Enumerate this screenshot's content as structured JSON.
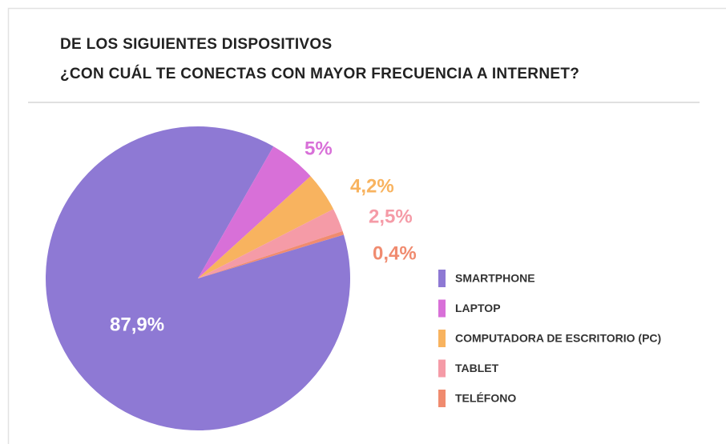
{
  "chart_data": {
    "type": "pie",
    "title": [
      "DE LOS SIGUIENTES DISPOSITIVOS",
      "¿CON CUÁL TE CONECTAS CON MAYOR FRECUENCIA A INTERNET?"
    ],
    "categories": [
      "SMARTPHONE",
      "LAPTOP",
      "COMPUTADORA DE ESCRITORIO (PC)",
      "TABLET",
      "TELÉFONO"
    ],
    "values": [
      87.9,
      5,
      4.2,
      2.5,
      0.4
    ],
    "value_labels": [
      "87,9%",
      "5%",
      "4,2%",
      "2,5%",
      "0,4%"
    ],
    "colors": [
      "#8e79d4",
      "#d870d8",
      "#f8b35f",
      "#f59ba7",
      "#f08b6f"
    ],
    "legend": "right"
  }
}
